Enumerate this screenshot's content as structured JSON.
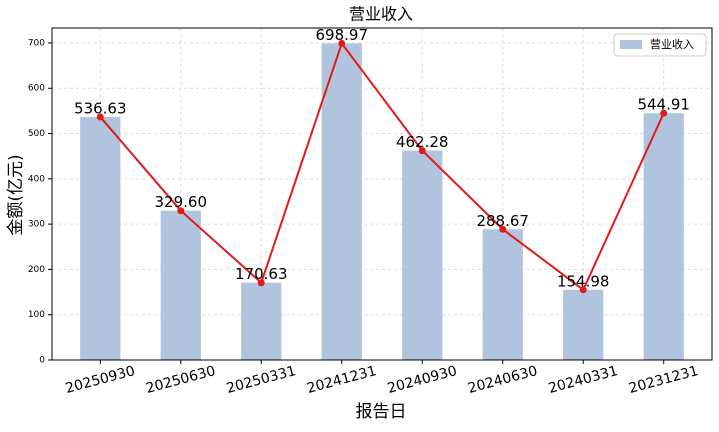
{
  "chart_data": {
    "type": "bar",
    "title": "营业收入",
    "x_label": "报告日",
    "y_label": "金额(亿元)",
    "categories": [
      "20250930",
      "20250630",
      "20250331",
      "20241231",
      "20240930",
      "20240630",
      "20240331",
      "20231231"
    ],
    "series": [
      {
        "name": "营业收入",
        "color": "#b0c4de",
        "values": [
          536.63,
          329.6,
          170.63,
          698.97,
          462.28,
          288.67,
          154.98,
          544.91
        ],
        "value_labels": [
          "536.63",
          "329.60",
          "170.63",
          "698.97",
          "462.28",
          "288.67",
          "154.98",
          "544.91"
        ]
      }
    ],
    "line_overlay": true,
    "line_color": "#e31a1c",
    "ylim": [
      0,
      733
    ],
    "yticks": [
      0,
      100,
      200,
      300,
      400,
      500,
      600,
      700
    ],
    "grid": true,
    "legend": "upper right"
  }
}
